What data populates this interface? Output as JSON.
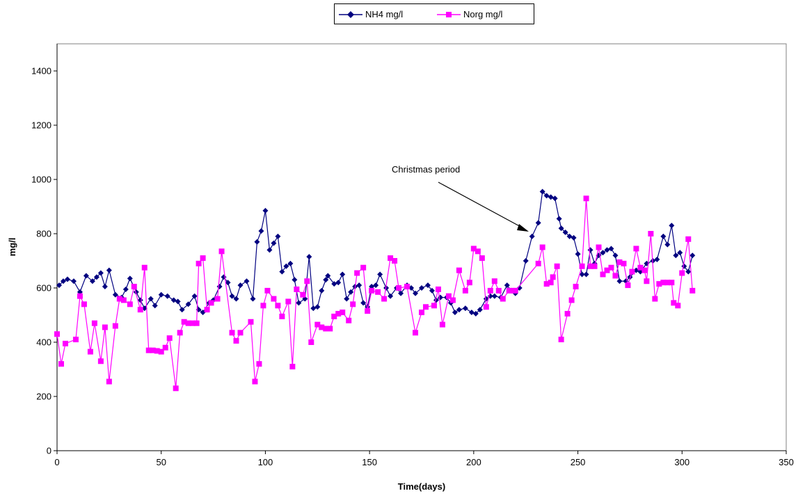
{
  "chart_data": {
    "type": "line",
    "title": "",
    "xlabel": "Time(days)",
    "ylabel": "mg/l",
    "xlim": [
      0,
      350
    ],
    "ylim": [
      0,
      1500
    ],
    "xticks": [
      0,
      50,
      100,
      150,
      200,
      250,
      300,
      350
    ],
    "yticks": [
      0,
      200,
      400,
      600,
      800,
      1000,
      1200,
      1400
    ],
    "grid": false,
    "legend_position": "top-center",
    "annotation": {
      "text": "Christmas period",
      "points_to_x": 231,
      "points_to_y": 820
    },
    "series": [
      {
        "name": "NH4 mg/l",
        "color": "#000080",
        "marker": "diamond",
        "points": [
          [
            1,
            610
          ],
          [
            3,
            625
          ],
          [
            5,
            632
          ],
          [
            8,
            625
          ],
          [
            11,
            585
          ],
          [
            14,
            645
          ],
          [
            17,
            625
          ],
          [
            19,
            640
          ],
          [
            21,
            655
          ],
          [
            23,
            605
          ],
          [
            25,
            665
          ],
          [
            28,
            575
          ],
          [
            31,
            565
          ],
          [
            33,
            595
          ],
          [
            35,
            635
          ],
          [
            38,
            585
          ],
          [
            40,
            555
          ],
          [
            42,
            525
          ],
          [
            45,
            560
          ],
          [
            47,
            535
          ],
          [
            50,
            575
          ],
          [
            53,
            570
          ],
          [
            56,
            555
          ],
          [
            58,
            550
          ],
          [
            60,
            520
          ],
          [
            63,
            540
          ],
          [
            66,
            570
          ],
          [
            68,
            520
          ],
          [
            70,
            510
          ],
          [
            73,
            545
          ],
          [
            75,
            555
          ],
          [
            78,
            605
          ],
          [
            80,
            640
          ],
          [
            82,
            620
          ],
          [
            84,
            570
          ],
          [
            86,
            560
          ],
          [
            88,
            610
          ],
          [
            91,
            625
          ],
          [
            94,
            560
          ],
          [
            96,
            770
          ],
          [
            98,
            810
          ],
          [
            100,
            885
          ],
          [
            102,
            740
          ],
          [
            104,
            765
          ],
          [
            106,
            790
          ],
          [
            108,
            660
          ],
          [
            110,
            680
          ],
          [
            112,
            690
          ],
          [
            114,
            630
          ],
          [
            116,
            545
          ],
          [
            119,
            560
          ],
          [
            121,
            715
          ],
          [
            123,
            525
          ],
          [
            125,
            530
          ],
          [
            127,
            590
          ],
          [
            129,
            630
          ],
          [
            130,
            645
          ],
          [
            133,
            615
          ],
          [
            135,
            620
          ],
          [
            137,
            650
          ],
          [
            139,
            560
          ],
          [
            141,
            585
          ],
          [
            143,
            605
          ],
          [
            145,
            610
          ],
          [
            147,
            545
          ],
          [
            149,
            530
          ],
          [
            151,
            605
          ],
          [
            153,
            610
          ],
          [
            155,
            650
          ],
          [
            158,
            600
          ],
          [
            160,
            570
          ],
          [
            163,
            600
          ],
          [
            165,
            580
          ],
          [
            168,
            610
          ],
          [
            170,
            600
          ],
          [
            172,
            580
          ],
          [
            175,
            600
          ],
          [
            178,
            610
          ],
          [
            180,
            590
          ],
          [
            182,
            555
          ],
          [
            184,
            565
          ],
          [
            187,
            565
          ],
          [
            189,
            545
          ],
          [
            191,
            510
          ],
          [
            193,
            520
          ],
          [
            196,
            525
          ],
          [
            199,
            510
          ],
          [
            201,
            505
          ],
          [
            203,
            520
          ],
          [
            206,
            560
          ],
          [
            208,
            570
          ],
          [
            210,
            570
          ],
          [
            213,
            565
          ],
          [
            216,
            610
          ],
          [
            218,
            590
          ],
          [
            220,
            580
          ],
          [
            222,
            600
          ],
          [
            225,
            700
          ],
          [
            228,
            790
          ],
          [
            231,
            840
          ],
          [
            233,
            955
          ],
          [
            235,
            940
          ],
          [
            237,
            935
          ],
          [
            239,
            930
          ],
          [
            241,
            855
          ],
          [
            242,
            820
          ],
          [
            244,
            805
          ],
          [
            246,
            790
          ],
          [
            248,
            785
          ],
          [
            250,
            725
          ],
          [
            252,
            650
          ],
          [
            254,
            650
          ],
          [
            256,
            740
          ],
          [
            258,
            690
          ],
          [
            260,
            720
          ],
          [
            262,
            730
          ],
          [
            264,
            740
          ],
          [
            266,
            745
          ],
          [
            268,
            720
          ],
          [
            270,
            625
          ],
          [
            273,
            625
          ],
          [
            275,
            640
          ],
          [
            278,
            665
          ],
          [
            280,
            660
          ],
          [
            283,
            690
          ],
          [
            286,
            700
          ],
          [
            288,
            705
          ],
          [
            291,
            790
          ],
          [
            293,
            760
          ],
          [
            295,
            830
          ],
          [
            297,
            720
          ],
          [
            299,
            730
          ],
          [
            301,
            680
          ],
          [
            303,
            660
          ],
          [
            305,
            720
          ]
        ]
      },
      {
        "name": "Norg mg/l",
        "color": "#FF00FF",
        "marker": "square",
        "points": [
          [
            0,
            430
          ],
          [
            2,
            320
          ],
          [
            4,
            395
          ],
          [
            9,
            410
          ],
          [
            11,
            570
          ],
          [
            13,
            540
          ],
          [
            16,
            365
          ],
          [
            18,
            470
          ],
          [
            21,
            330
          ],
          [
            23,
            455
          ],
          [
            25,
            255
          ],
          [
            28,
            460
          ],
          [
            30,
            560
          ],
          [
            32,
            555
          ],
          [
            35,
            540
          ],
          [
            37,
            605
          ],
          [
            40,
            520
          ],
          [
            42,
            675
          ],
          [
            44,
            370
          ],
          [
            46,
            370
          ],
          [
            48,
            368
          ],
          [
            50,
            365
          ],
          [
            52,
            380
          ],
          [
            54,
            415
          ],
          [
            57,
            230
          ],
          [
            59,
            435
          ],
          [
            61,
            475
          ],
          [
            63,
            470
          ],
          [
            65,
            470
          ],
          [
            67,
            470
          ],
          [
            68,
            690
          ],
          [
            70,
            710
          ],
          [
            72,
            520
          ],
          [
            74,
            545
          ],
          [
            77,
            560
          ],
          [
            79,
            735
          ],
          [
            84,
            435
          ],
          [
            86,
            405
          ],
          [
            88,
            435
          ],
          [
            93,
            475
          ],
          [
            95,
            255
          ],
          [
            97,
            320
          ],
          [
            99,
            535
          ],
          [
            101,
            590
          ],
          [
            104,
            560
          ],
          [
            106,
            535
          ],
          [
            108,
            495
          ],
          [
            111,
            550
          ],
          [
            113,
            310
          ],
          [
            115,
            595
          ],
          [
            118,
            575
          ],
          [
            120,
            625
          ],
          [
            122,
            400
          ],
          [
            125,
            465
          ],
          [
            127,
            455
          ],
          [
            129,
            450
          ],
          [
            131,
            450
          ],
          [
            133,
            495
          ],
          [
            135,
            505
          ],
          [
            137,
            510
          ],
          [
            140,
            480
          ],
          [
            142,
            540
          ],
          [
            144,
            655
          ],
          [
            147,
            675
          ],
          [
            149,
            515
          ],
          [
            151,
            590
          ],
          [
            154,
            585
          ],
          [
            157,
            560
          ],
          [
            160,
            710
          ],
          [
            162,
            700
          ],
          [
            164,
            600
          ],
          [
            168,
            605
          ],
          [
            172,
            435
          ],
          [
            175,
            510
          ],
          [
            177,
            530
          ],
          [
            181,
            535
          ],
          [
            183,
            595
          ],
          [
            185,
            465
          ],
          [
            188,
            570
          ],
          [
            190,
            555
          ],
          [
            193,
            665
          ],
          [
            196,
            590
          ],
          [
            198,
            620
          ],
          [
            200,
            745
          ],
          [
            202,
            735
          ],
          [
            204,
            710
          ],
          [
            206,
            530
          ],
          [
            208,
            590
          ],
          [
            210,
            625
          ],
          [
            212,
            590
          ],
          [
            214,
            560
          ],
          [
            217,
            590
          ],
          [
            219,
            590
          ],
          [
            220,
            590
          ],
          [
            231,
            690
          ],
          [
            233,
            750
          ],
          [
            235,
            615
          ],
          [
            237,
            620
          ],
          [
            238,
            640
          ],
          [
            240,
            680
          ],
          [
            242,
            410
          ],
          [
            245,
            505
          ],
          [
            247,
            555
          ],
          [
            249,
            605
          ],
          [
            252,
            680
          ],
          [
            254,
            930
          ],
          [
            256,
            680
          ],
          [
            258,
            680
          ],
          [
            260,
            750
          ],
          [
            262,
            650
          ],
          [
            264,
            665
          ],
          [
            266,
            675
          ],
          [
            268,
            645
          ],
          [
            270,
            695
          ],
          [
            272,
            690
          ],
          [
            274,
            610
          ],
          [
            276,
            660
          ],
          [
            278,
            745
          ],
          [
            280,
            675
          ],
          [
            282,
            665
          ],
          [
            283,
            625
          ],
          [
            285,
            800
          ],
          [
            287,
            560
          ],
          [
            289,
            615
          ],
          [
            291,
            620
          ],
          [
            293,
            620
          ],
          [
            295,
            620
          ],
          [
            296,
            545
          ],
          [
            298,
            535
          ],
          [
            300,
            655
          ],
          [
            303,
            780
          ],
          [
            305,
            590
          ]
        ]
      }
    ]
  }
}
